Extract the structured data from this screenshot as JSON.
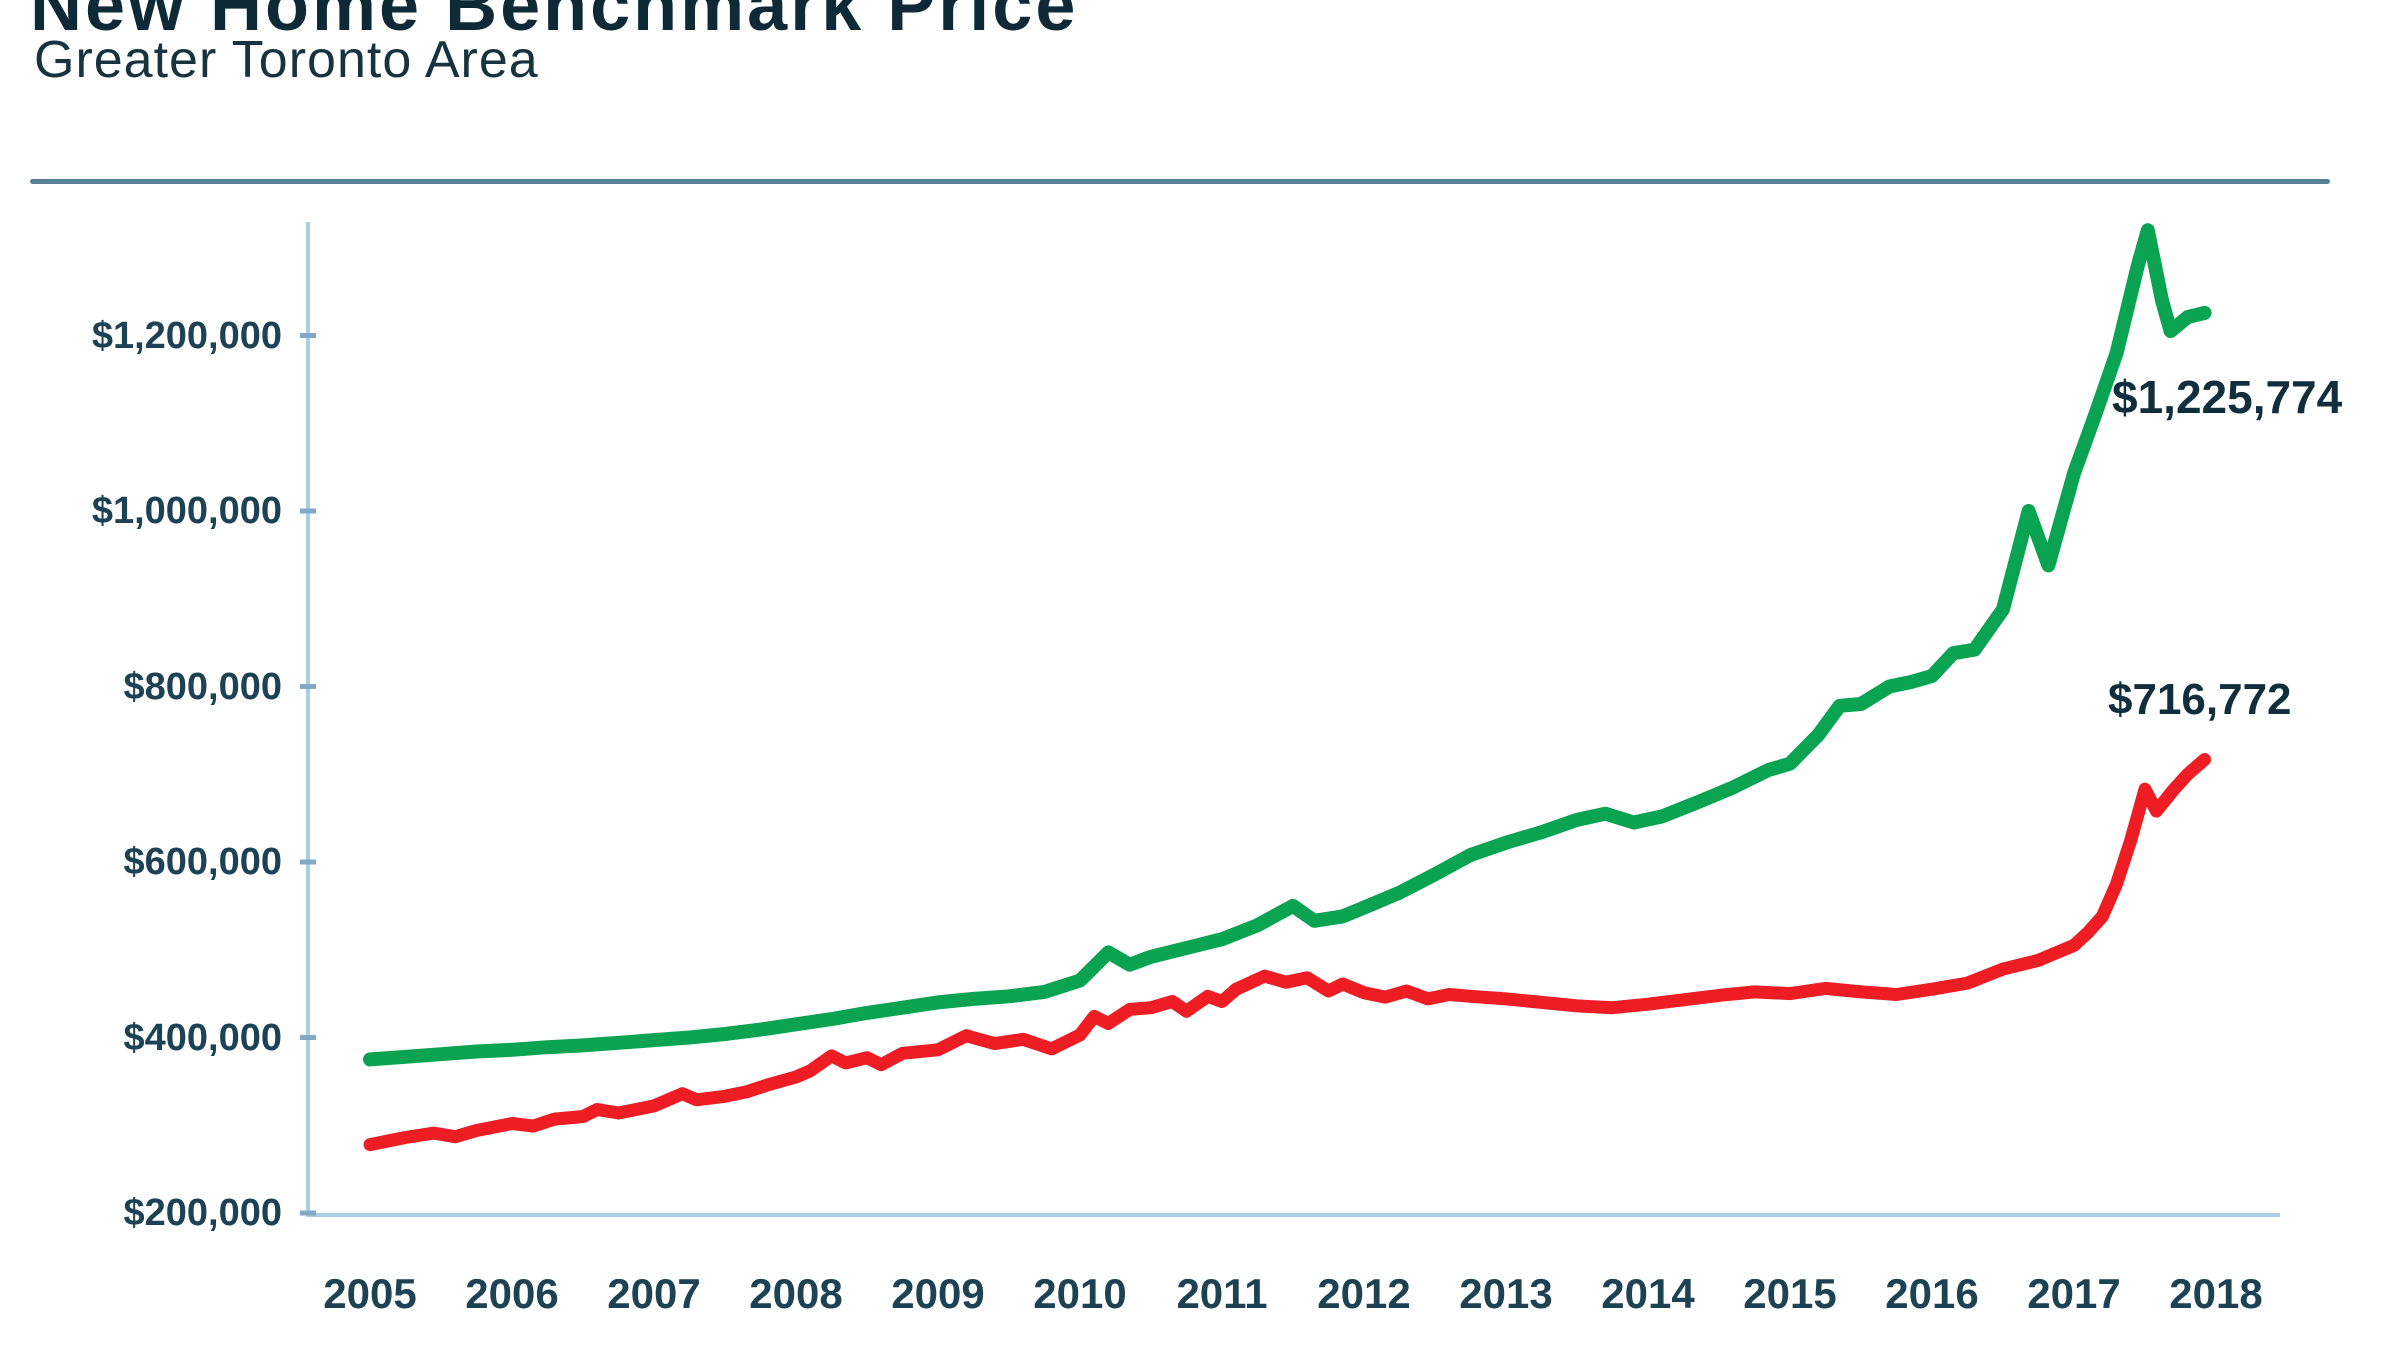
{
  "header": {
    "title": "New Home Benchmark Price",
    "subtitle": "Greater Toronto Area"
  },
  "colors": {
    "divider": "#577f95",
    "axis": "#a9cee5",
    "tick": "#7fa9c4",
    "title_text": "#0e2a36",
    "label_text": "#1d4254",
    "annotation_text": "#102e3b",
    "green_series": "#0aa352",
    "red_series": "#ee1c23"
  },
  "chart_data": {
    "type": "line",
    "title": "New Home Benchmark Price",
    "subtitle": "Greater Toronto Area",
    "grid": false,
    "legend_position": "none",
    "x_axis": {
      "tick_labels": [
        "2005",
        "2006",
        "2007",
        "2008",
        "2009",
        "2010",
        "2011",
        "2012",
        "2013",
        "2014",
        "2015",
        "2016",
        "2017",
        "2018"
      ],
      "range": [
        2005,
        2018
      ]
    },
    "y_axis": {
      "tick_labels": [
        "$200,000",
        "$400,000",
        "$600,000",
        "$800,000",
        "$1,000,000",
        "$1,200,000"
      ],
      "tick_values": [
        200000,
        400000,
        600000,
        800000,
        1000000,
        1200000
      ],
      "range": [
        200000,
        1330000
      ]
    },
    "annotations": [
      {
        "text": "$1,225,774",
        "series": "series-green-line"
      },
      {
        "text": "$716,772",
        "series": "series-red-line"
      }
    ],
    "series": [
      {
        "name": "series-green-line",
        "color": "#0aa352",
        "end_label": "$1,225,774",
        "end_value": 1225774,
        "peak_value": 1320000,
        "x": [
          2005,
          2005.25,
          2005.5,
          2005.75,
          2006,
          2006.25,
          2006.5,
          2006.75,
          2007,
          2007.25,
          2007.5,
          2007.75,
          2008,
          2008.25,
          2008.5,
          2008.75,
          2009,
          2009.25,
          2009.5,
          2009.75,
          2010,
          2010.2,
          2010.35,
          2010.5,
          2010.75,
          2011,
          2011.25,
          2011.5,
          2011.65,
          2011.85,
          2012,
          2012.25,
          2012.5,
          2012.75,
          2013,
          2013.25,
          2013.5,
          2013.7,
          2013.9,
          2014.1,
          2014.35,
          2014.6,
          2014.85,
          2015,
          2015.2,
          2015.35,
          2015.5,
          2015.7,
          2015.85,
          2016,
          2016.15,
          2016.3,
          2016.5,
          2016.68,
          2016.82,
          2017,
          2017.15,
          2017.3,
          2017.45,
          2017.52,
          2017.62,
          2017.68,
          2017.8,
          2017.92
        ],
        "y": [
          375000,
          378000,
          381000,
          384000,
          386000,
          389000,
          391000,
          394000,
          397000,
          400000,
          404000,
          409000,
          415000,
          421000,
          428000,
          434000,
          440000,
          444000,
          447000,
          452000,
          465000,
          497000,
          483000,
          492000,
          502000,
          512000,
          528000,
          550000,
          533000,
          538000,
          548000,
          565000,
          586000,
          608000,
          622000,
          634000,
          648000,
          655000,
          645000,
          652000,
          668000,
          685000,
          705000,
          712000,
          745000,
          778000,
          780000,
          800000,
          805000,
          812000,
          838000,
          842000,
          888000,
          1000000,
          938000,
          1043000,
          1110000,
          1180000,
          1280000,
          1320000,
          1240000,
          1205000,
          1221000,
          1225774
        ]
      },
      {
        "name": "series-red-line",
        "color": "#ee1c23",
        "end_label": "$716,772",
        "end_value": 716772,
        "x": [
          2005,
          2005.25,
          2005.45,
          2005.6,
          2005.75,
          2006,
          2006.15,
          2006.3,
          2006.5,
          2006.6,
          2006.75,
          2007,
          2007.2,
          2007.3,
          2007.5,
          2007.65,
          2007.8,
          2008,
          2008.1,
          2008.25,
          2008.35,
          2008.5,
          2008.6,
          2008.75,
          2009,
          2009.2,
          2009.4,
          2009.6,
          2009.8,
          2010,
          2010.1,
          2010.2,
          2010.35,
          2010.5,
          2010.65,
          2010.75,
          2010.9,
          2011,
          2011.1,
          2011.3,
          2011.45,
          2011.6,
          2011.75,
          2011.85,
          2012,
          2012.15,
          2012.3,
          2012.45,
          2012.6,
          2012.75,
          2013,
          2013.25,
          2013.5,
          2013.75,
          2014,
          2014.25,
          2014.5,
          2014.75,
          2015,
          2015.25,
          2015.5,
          2015.75,
          2016,
          2016.25,
          2016.5,
          2016.75,
          2017,
          2017.1,
          2017.2,
          2017.3,
          2017.4,
          2017.5,
          2017.58,
          2017.7,
          2017.8,
          2017.92
        ],
        "y": [
          278000,
          286000,
          291000,
          287000,
          294000,
          302000,
          299000,
          307000,
          310000,
          318000,
          314000,
          322000,
          336000,
          329000,
          333000,
          338000,
          346000,
          355000,
          362000,
          379000,
          371000,
          377000,
          369000,
          382000,
          386000,
          402000,
          393000,
          398000,
          387000,
          403000,
          424000,
          416000,
          432000,
          434000,
          441000,
          430000,
          447000,
          441000,
          455000,
          470000,
          463000,
          468000,
          453000,
          461000,
          451000,
          446000,
          453000,
          444000,
          449000,
          447000,
          444000,
          440000,
          436000,
          434000,
          438000,
          443000,
          448000,
          452000,
          450000,
          456000,
          452000,
          449000,
          455000,
          462000,
          478000,
          488000,
          505000,
          520000,
          538000,
          575000,
          625000,
          683000,
          658000,
          682000,
          700000,
          716772
        ]
      }
    ]
  }
}
